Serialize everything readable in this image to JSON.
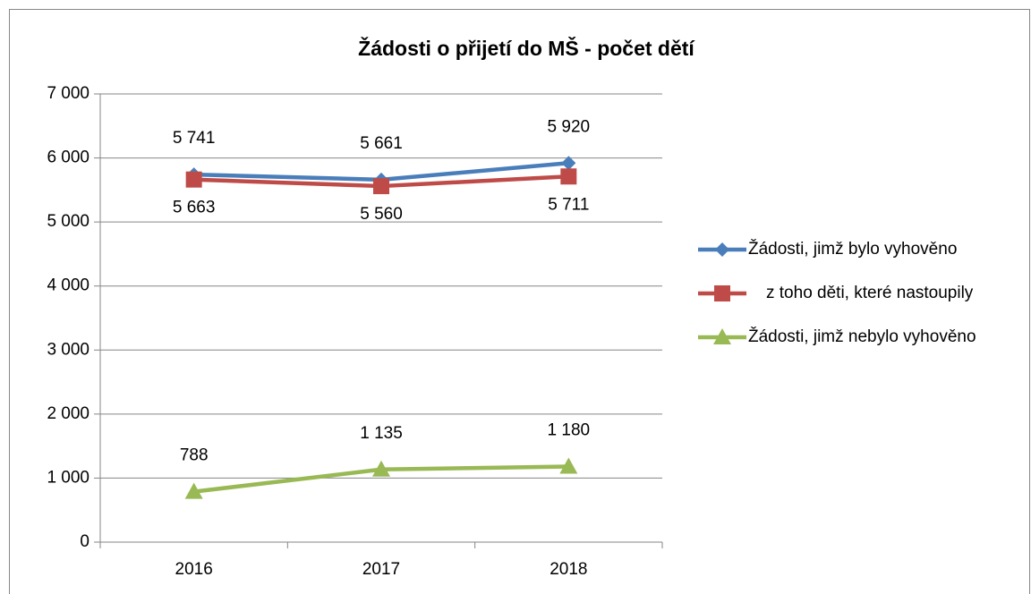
{
  "chart_data": {
    "type": "line",
    "title": "Žádosti o přijetí do MŠ - počet dětí",
    "categories": [
      "2016",
      "2017",
      "2018"
    ],
    "series": [
      {
        "name": "Žádosti, jimž bylo vyhověno",
        "color": "#4a7ebb",
        "marker": "diamond",
        "label_position": "above",
        "values": [
          5741,
          5661,
          5920
        ],
        "value_labels": [
          "5 741",
          "5 661",
          "5 920"
        ]
      },
      {
        "name": "z toho děti, které nastoupily",
        "color": "#be4b48",
        "marker": "square",
        "label_position": "below",
        "values": [
          5663,
          5560,
          5711
        ],
        "value_labels": [
          "5 663",
          "5 560",
          "5 711"
        ]
      },
      {
        "name": "Žádosti, jimž nebylo vyhověno",
        "color": "#98b954",
        "marker": "triangle",
        "label_position": "above",
        "values": [
          788,
          1135,
          1180
        ],
        "value_labels": [
          "788",
          "1 135",
          "1 180"
        ]
      }
    ],
    "ylim": [
      0,
      7000
    ],
    "yticks": [
      0,
      {
        "value": 1000,
        "label": "1 000"
      },
      {
        "value": 2000,
        "label": "2 000"
      },
      {
        "value": 3000,
        "label": "3 000"
      },
      {
        "value": 4000,
        "label": "4 000"
      },
      {
        "value": 5000,
        "label": "5 000"
      },
      {
        "value": 6000,
        "label": "6 000"
      },
      {
        "value": 7000,
        "label": "7 000"
      }
    ],
    "grid": true,
    "legend": "right"
  }
}
